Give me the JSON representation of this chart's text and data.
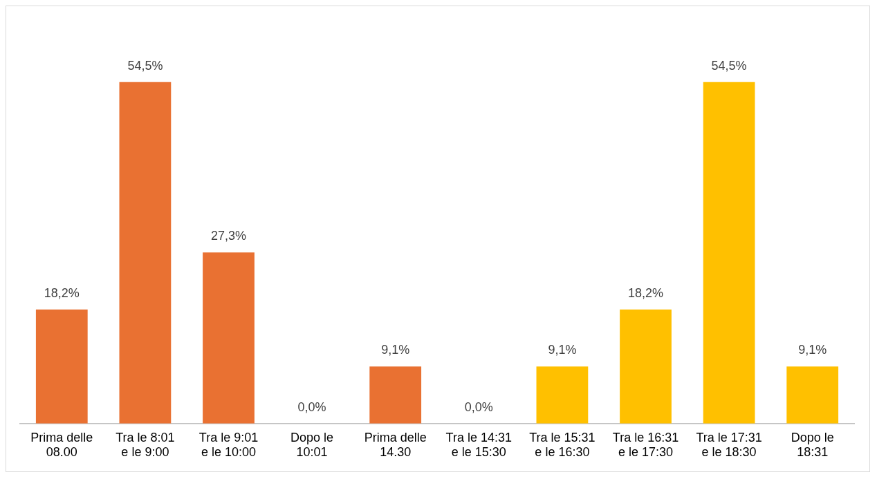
{
  "chart_data": {
    "type": "bar",
    "categories": [
      "Prima delle 08.00",
      "Tra le 8:01 e le 9:00",
      "Tra le 9:01 e le 10:00",
      "Dopo le 10:01",
      "Prima delle 14.30",
      "Tra le 14:31 e le 15:30",
      "Tra le 15:31 e le 16:30",
      "Tra le 16:31 e le 17:30",
      "Tra le 17:31 e le 18:30",
      "Dopo le 18:31"
    ],
    "values": [
      18.2,
      54.5,
      27.3,
      0,
      9.1,
      0,
      9.1,
      18.2,
      54.5,
      9.1
    ],
    "value_labels": [
      "18,2%",
      "54,5%",
      "27,3%",
      "0,0%",
      "9,1%",
      "0,0%",
      "9,1%",
      "18,2%",
      "54,5%",
      "9,1%"
    ],
    "colors": [
      "#e97132",
      "#e97132",
      "#e97132",
      "#e97132",
      "#e97132",
      "#ffc000",
      "#ffc000",
      "#ffc000",
      "#ffc000",
      "#ffc000"
    ],
    "grid": false,
    "legend": false
  }
}
